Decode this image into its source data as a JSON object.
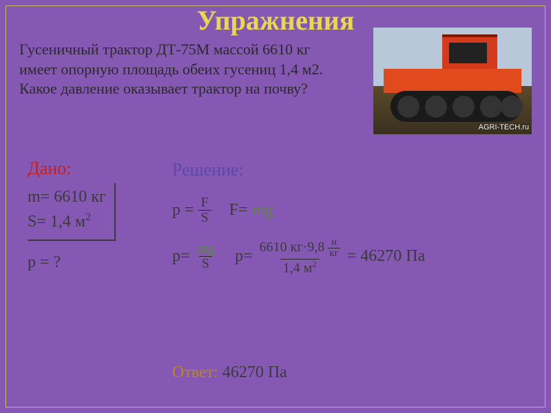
{
  "title_text": "Упражнения",
  "problem_text": "Гусеничный трактор ДТ-75М массой 6610 кг имеет опорную площадь обеих гусениц 1,4 м2. Какое давление оказывает трактор на почву?",
  "watermark": "AGRI-TECH.ru",
  "given": {
    "label": "Дано:",
    "mass_line": "m= 6610 кг",
    "area_prefix": "S= 1,4 м",
    "area_exp": "2",
    "find": "p = ?"
  },
  "solution": {
    "label": "Решение:",
    "p_eq": "p =",
    "frac1_num": "F",
    "frac1_den": "S",
    "F_eq": "F=",
    "F_rhs": "mg",
    "p2_eq": "p=",
    "frac2_num": "mg",
    "frac2_den": "S",
    "p3_eq": "p=",
    "calc_num_prefix": "6610 кг·9,8 ",
    "calc_num_unit_top": "н",
    "calc_num_unit_bot": "кг",
    "calc_den": "1,4 м",
    "calc_den_exp": "2",
    "result": " = 46270 Па"
  },
  "answer": {
    "label": "Ответ:",
    "value": " 46270 Па"
  },
  "colors": {
    "background": "#8558b3",
    "frame": "#c9b96a",
    "title": "#e8d84a",
    "problem": "#2a2a2a",
    "given_label": "#c02020",
    "solution_label": "#5a4aa8",
    "mg": "#5a8a3a",
    "text": "#3a3a3a",
    "answer": "#b88a18"
  }
}
